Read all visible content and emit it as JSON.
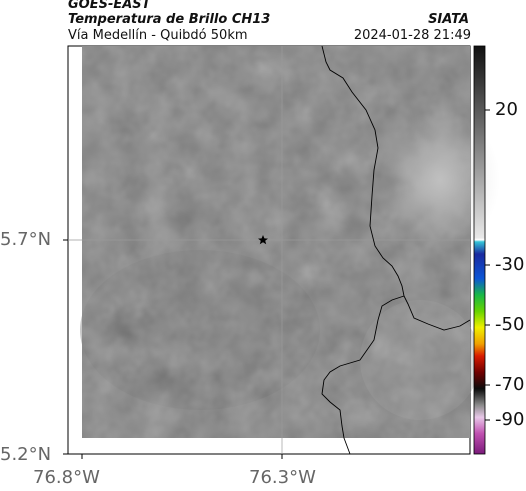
{
  "header": {
    "satellite": "GOES-EAST",
    "product": "Temperatura de Brillo CH13",
    "region": "Vía Medellín - Quibdó 50km",
    "org": "SIATA",
    "timestamp": "2024-01-28 21:49"
  },
  "axes": {
    "y_ticks": [
      "5.7°N",
      "5.2°N"
    ],
    "x_ticks": [
      "76.8°W",
      "76.3°W"
    ]
  },
  "colorbar": {
    "ticks": [
      "20",
      "-30",
      "-50",
      "-70",
      "-90"
    ]
  },
  "map": {
    "marker": "star-icon"
  }
}
